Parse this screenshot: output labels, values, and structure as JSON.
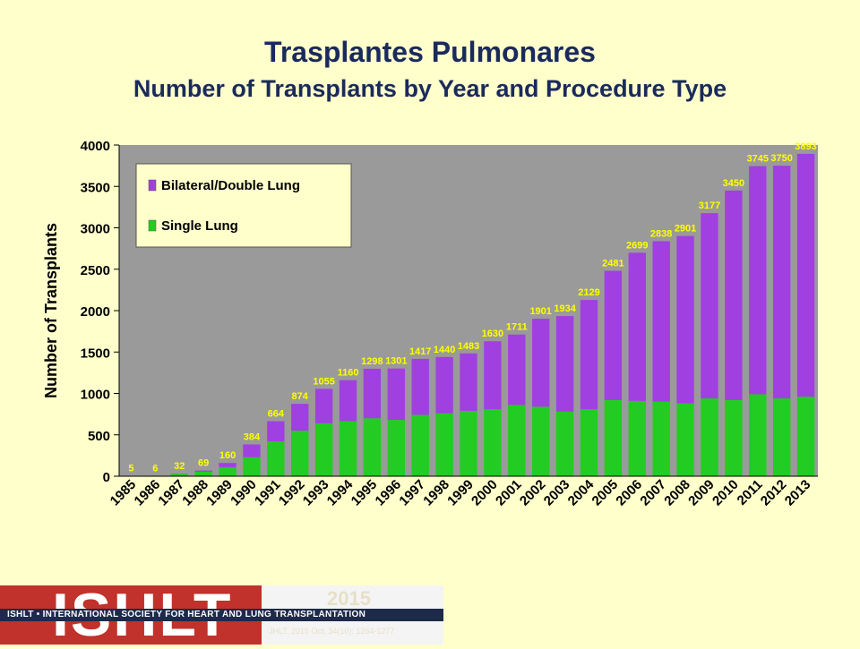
{
  "header": {
    "title": "Trasplantes Pulmonares",
    "subtitle": "Number of Transplants by Year and Procedure Type"
  },
  "chart_data": {
    "type": "bar",
    "stacked": true,
    "ylabel": "Number of Transplants",
    "xlabel": "",
    "ylim": [
      0,
      4000
    ],
    "yticks": [
      0,
      500,
      1000,
      1500,
      2000,
      2500,
      3000,
      3500,
      4000
    ],
    "categories": [
      "1985",
      "1986",
      "1987",
      "1988",
      "1989",
      "1990",
      "1991",
      "1992",
      "1993",
      "1994",
      "1995",
      "1996",
      "1997",
      "1998",
      "1999",
      "2000",
      "2001",
      "2002",
      "2003",
      "2004",
      "2005",
      "2006",
      "2007",
      "2008",
      "2009",
      "2010",
      "2011",
      "2012",
      "2013"
    ],
    "series": [
      {
        "name": "Single Lung",
        "color": "#22cc22",
        "values": [
          5,
          6,
          30,
          55,
          110,
          230,
          420,
          550,
          640,
          665,
          700,
          680,
          740,
          760,
          790,
          810,
          860,
          840,
          780,
          810,
          920,
          910,
          900,
          880,
          940,
          920,
          990,
          940,
          960
        ]
      },
      {
        "name": "Bilateral/Double Lung",
        "color": "#a040e0",
        "values": [
          0,
          0,
          2,
          14,
          50,
          154,
          244,
          324,
          415,
          495,
          598,
          621,
          677,
          680,
          693,
          820,
          851,
          1061,
          1154,
          1319,
          1561,
          1789,
          1938,
          2021,
          2237,
          2530,
          2755,
          2810,
          2933
        ]
      }
    ],
    "totals": [
      5,
      6,
      32,
      69,
      160,
      384,
      664,
      874,
      1055,
      1160,
      1298,
      1301,
      1417,
      1440,
      1483,
      1630,
      1711,
      1901,
      1934,
      2129,
      2481,
      2699,
      2838,
      2901,
      3177,
      3450,
      3745,
      3750,
      3893
    ],
    "legend": {
      "placement": "top-left",
      "items": [
        "Bilateral/Double Lung",
        "Single Lung"
      ]
    },
    "grid": false
  },
  "footer": {
    "logo": "ISHLT",
    "band_text": "ISHLT • INTERNATIONAL SOCIETY FOR HEART AND LUNG TRANSPLANTATION",
    "year": "2015",
    "journal": "JHLT. 2015 Oct; 34(10): 1264-1277"
  },
  "colors": {
    "background": "#ffffcc",
    "title": "#1a2a5c",
    "plot_bg": "#9a9a9a",
    "total_label": "#ffff00"
  }
}
